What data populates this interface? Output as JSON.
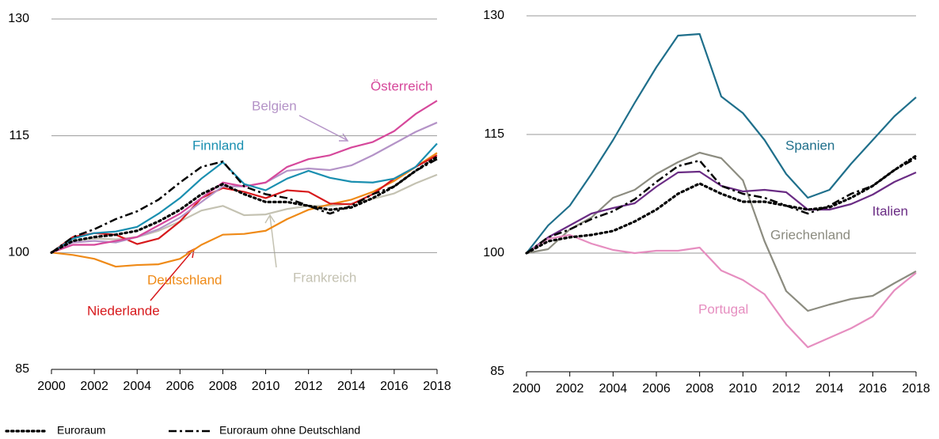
{
  "chart_data": [
    {
      "type": "line",
      "x": [
        2000,
        2001,
        2002,
        2003,
        2004,
        2005,
        2006,
        2007,
        2008,
        2009,
        2010,
        2011,
        2012,
        2013,
        2014,
        2015,
        2016,
        2017,
        2018
      ],
      "xlim": [
        2000,
        2018
      ],
      "xticks": [
        2000,
        2002,
        2004,
        2006,
        2008,
        2010,
        2012,
        2014,
        2016,
        2018
      ],
      "ylim": [
        85,
        130
      ],
      "yticks": [
        85,
        100,
        115,
        130
      ],
      "grid": true,
      "series": [
        {
          "name": "Euroraum",
          "color": "#000000",
          "dash": "dotted",
          "values": [
            100,
            101.5,
            102,
            102.3,
            102.8,
            104,
            105.5,
            107.5,
            108.8,
            107.5,
            106.5,
            106.5,
            106,
            105.5,
            105.8,
            107,
            108.5,
            110.5,
            112.3
          ]
        },
        {
          "name": "Euroraum ohne Deutschland",
          "color": "#000000",
          "dash": "dashdot",
          "values": [
            100,
            102,
            103,
            104.3,
            105.3,
            106.8,
            109,
            111,
            111.7,
            108.5,
            107.5,
            107,
            106,
            105,
            106,
            107.5,
            108.5,
            110.5,
            112
          ]
        },
        {
          "name": "Frankreich",
          "color": "#c4c2b2",
          "values": [
            100,
            101.5,
            101.8,
            101.7,
            102,
            102.8,
            104,
            105.4,
            106,
            104.8,
            104.9,
            105.6,
            106,
            106,
            106.3,
            106.9,
            107.6,
            108.9,
            110
          ]
        },
        {
          "name": "Deutschland",
          "color": "#ef8a17",
          "values": [
            100,
            99.7,
            99.2,
            98.2,
            98.4,
            98.5,
            99.2,
            101,
            102.3,
            102.4,
            102.8,
            104.3,
            105.5,
            106.2,
            106.8,
            107.8,
            109.2,
            111,
            112.8
          ]
        },
        {
          "name": "Niederlande",
          "color": "#d7191c",
          "values": [
            100,
            102,
            102.5,
            102.3,
            101.1,
            101.8,
            104,
            107,
            108.3,
            107.8,
            107,
            108,
            107.8,
            106.3,
            106.2,
            107.5,
            109.5,
            111,
            112.5
          ]
        },
        {
          "name": "Belgien",
          "color": "#b493c7",
          "values": [
            100,
            101.3,
            101.5,
            101.3,
            102,
            103,
            104.5,
            106.5,
            108.5,
            108.5,
            109,
            110.5,
            110.8,
            110.6,
            111.2,
            112.5,
            114,
            115.5,
            116.7
          ]
        },
        {
          "name": "Österreich",
          "color": "#d6489b",
          "values": [
            100,
            101,
            101,
            101.5,
            102,
            103.5,
            105,
            107,
            109,
            108.5,
            109,
            111,
            112,
            112.5,
            113.5,
            114.2,
            115.6,
            117.8,
            119.5
          ]
        },
        {
          "name": "Finnland",
          "color": "#1a8fb0",
          "values": [
            100,
            101.8,
            102.5,
            102.7,
            103.3,
            105,
            107,
            109.5,
            111.6,
            108.8,
            108,
            109.5,
            110.5,
            109.6,
            109.1,
            109,
            109.5,
            111,
            114
          ]
        }
      ]
    },
    {
      "type": "line",
      "x": [
        2000,
        2001,
        2002,
        2003,
        2004,
        2005,
        2006,
        2007,
        2008,
        2009,
        2010,
        2011,
        2012,
        2013,
        2014,
        2015,
        2016,
        2017,
        2018
      ],
      "xlim": [
        2000,
        2018
      ],
      "xticks": [
        2000,
        2002,
        2004,
        2006,
        2008,
        2010,
        2012,
        2014,
        2016,
        2018
      ],
      "ylim": [
        85,
        130
      ],
      "yticks": [
        85,
        100,
        115,
        130
      ],
      "grid": true,
      "series": [
        {
          "name": "Euroraum",
          "color": "#000000",
          "dash": "dotted",
          "values": [
            100,
            101.5,
            102,
            102.3,
            102.8,
            104,
            105.5,
            107.5,
            108.8,
            107.5,
            106.5,
            106.5,
            106,
            105.5,
            105.8,
            107,
            108.5,
            110.5,
            112.3
          ]
        },
        {
          "name": "Euroraum ohne Deutschland",
          "color": "#000000",
          "dash": "dashdot",
          "values": [
            100,
            102,
            103,
            104.3,
            105.3,
            106.8,
            109,
            111,
            111.7,
            108.5,
            107.5,
            107,
            106,
            105,
            106,
            107.5,
            108.5,
            110.5,
            112
          ]
        },
        {
          "name": "Griechenland",
          "color": "#8c8c80",
          "values": [
            100,
            100.5,
            103,
            104.5,
            107,
            108,
            110,
            111.5,
            112.7,
            112,
            109.2,
            101.5,
            95.2,
            92.7,
            93.5,
            94.2,
            94.6,
            96.2,
            97.7
          ]
        },
        {
          "name": "Italien",
          "color": "#6a2c84",
          "values": [
            100,
            102,
            103.5,
            105,
            105.7,
            106.3,
            108.4,
            110.2,
            110.3,
            108.5,
            107.8,
            108,
            107.7,
            105.5,
            105.5,
            106.2,
            107.4,
            109,
            110.2
          ]
        },
        {
          "name": "Portugal",
          "color": "#e68ec0",
          "values": [
            100,
            101.8,
            102.3,
            101.2,
            100.4,
            100,
            100.3,
            100.3,
            100.7,
            97.8,
            96.6,
            94.8,
            91,
            88.1,
            89.3,
            90.5,
            92,
            95.3,
            97.5
          ]
        },
        {
          "name": "Spanien",
          "color": "#1f6f8b",
          "values": [
            100,
            103.5,
            106,
            110,
            114.3,
            119,
            123.5,
            127.5,
            127.7,
            119.8,
            117.7,
            114.3,
            110,
            107,
            108,
            111.3,
            114.3,
            117.3,
            119.7
          ]
        }
      ]
    }
  ]
}
